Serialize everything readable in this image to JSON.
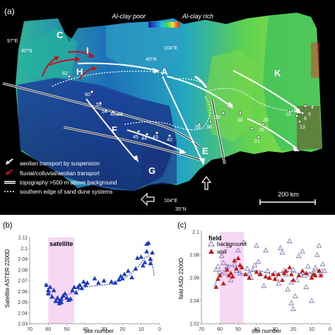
{
  "panel_a": {
    "letter": "(a)",
    "colorbar": {
      "left_label": "Al-clay poor",
      "right_label": "Al-clay rich"
    },
    "graticule": [
      "97°E",
      "40°N",
      "40°N",
      "104°E",
      "104°E",
      "35°N"
    ],
    "regions": [
      "A",
      "C",
      "E",
      "F",
      "G",
      "H",
      "I",
      "K"
    ],
    "sites": [
      "62",
      "60",
      "55",
      "54",
      "49",
      "48",
      "45",
      "44",
      "43",
      "40",
      "39",
      "38",
      "35",
      "33",
      "30",
      "26",
      "21",
      "20",
      "10",
      "8",
      "6",
      "4",
      "13",
      "5"
    ],
    "scale_bar": "200 km",
    "legend": [
      {
        "label": "aeolian transport by suspension",
        "icon": "white-arrow-icon"
      },
      {
        "label": "fluvial/colluvial/aeolian transport",
        "icon": "red-arrow-icon"
      },
      {
        "label": "topography >500 m above background",
        "icon": "white-outline-line-icon"
      },
      {
        "label": "southern edge of sand dune systems",
        "icon": "white-dotted-line-icon"
      }
    ]
  },
  "chart_data": [
    {
      "type": "scatter",
      "panel": "(b)",
      "title": "satellite",
      "xlabel": "site number",
      "ylabel": "Satellite ASTER 2200D",
      "xlim": [
        70,
        0
      ],
      "ylim": [
        2.03,
        2.11
      ],
      "xticks": [
        "70",
        "60",
        "50",
        "40",
        "30",
        "20",
        "10",
        "0"
      ],
      "yticks": [
        "2.03",
        "2.04",
        "2.05",
        "2.06",
        "2.07",
        "2.08",
        "2.09",
        "2.1",
        "2.11"
      ],
      "highlight_x": [
        60,
        46
      ],
      "marker_color": "#1a3bbf",
      "trend_color": "#1a3bbf",
      "series": [
        {
          "points": [
            [
              61,
              2.066
            ],
            [
              60,
              2.058
            ],
            [
              60,
              2.061
            ],
            [
              59,
              2.064
            ],
            [
              58,
              2.055
            ],
            [
              57,
              2.061
            ],
            [
              56,
              2.051
            ],
            [
              55,
              2.054
            ],
            [
              54,
              2.049
            ],
            [
              54,
              2.051
            ],
            [
              53,
              2.05
            ],
            [
              53,
              2.053
            ],
            [
              52,
              2.056
            ],
            [
              51,
              2.058
            ],
            [
              50,
              2.054
            ],
            [
              49,
              2.052
            ],
            [
              48,
              2.053
            ],
            [
              47,
              2.061
            ],
            [
              46,
              2.064
            ],
            [
              45,
              2.059
            ],
            [
              44,
              2.064
            ],
            [
              43,
              2.066
            ],
            [
              42,
              2.063
            ],
            [
              41,
              2.069
            ],
            [
              40,
              2.066
            ],
            [
              39,
              2.068
            ],
            [
              35,
              2.072
            ],
            [
              33,
              2.068
            ],
            [
              30,
              2.07
            ],
            [
              26,
              2.069
            ],
            [
              24,
              2.068
            ],
            [
              22,
              2.071
            ],
            [
              21,
              2.074
            ],
            [
              20,
              2.072
            ],
            [
              19,
              2.076
            ],
            [
              17,
              2.079
            ],
            [
              15,
              2.073
            ],
            [
              13,
              2.081
            ],
            [
              12,
              2.091
            ],
            [
              10,
              2.092
            ],
            [
              9,
              2.084
            ],
            [
              8,
              2.087
            ],
            [
              7,
              2.097
            ],
            [
              7,
              2.104
            ],
            [
              6,
              2.105
            ],
            [
              5,
              2.086
            ],
            [
              5,
              2.09
            ],
            [
              4,
              2.096
            ]
          ]
        }
      ],
      "trend": [
        [
          62,
          2.067
        ],
        [
          58,
          2.056
        ],
        [
          55,
          2.051
        ],
        [
          52,
          2.054
        ],
        [
          48,
          2.058
        ],
        [
          44,
          2.061
        ],
        [
          40,
          2.064
        ],
        [
          35,
          2.065
        ],
        [
          30,
          2.066
        ],
        [
          25,
          2.067
        ],
        [
          20,
          2.071
        ],
        [
          15,
          2.077
        ],
        [
          11,
          2.084
        ],
        [
          8,
          2.091
        ],
        [
          6,
          2.093
        ],
        [
          4,
          2.086
        ],
        [
          3,
          2.075
        ]
      ]
    },
    {
      "type": "scatter",
      "panel": "(c)",
      "title": "field",
      "xlabel": "site number",
      "ylabel": "field ASD 2200D",
      "xlim": [
        70,
        0
      ],
      "ylim": [
        2.02,
        2.1
      ],
      "xticks": [
        "70",
        "60",
        "50",
        "40",
        "30",
        "20",
        "10",
        "0"
      ],
      "yticks": [
        "2.02",
        "2.04",
        "2.06",
        "2.08",
        "2.1"
      ],
      "highlight_x": [
        60,
        47
      ],
      "trend_color": "#1a3bbf",
      "series": [
        {
          "name": "background",
          "marker": "open-triangle",
          "color": "#7a6fb8",
          "points": [
            [
              62,
              2.067
            ],
            [
              61,
              2.07
            ],
            [
              60,
              2.065
            ],
            [
              59,
              2.079
            ],
            [
              58,
              2.073
            ],
            [
              57,
              2.064
            ],
            [
              56,
              2.07
            ],
            [
              55,
              2.088
            ],
            [
              54,
              2.058
            ],
            [
              52,
              2.072
            ],
            [
              51,
              2.066
            ],
            [
              50,
              2.084
            ],
            [
              49,
              2.064
            ],
            [
              47,
              2.091
            ],
            [
              45,
              2.068
            ],
            [
              44,
              2.064
            ],
            [
              43,
              2.06
            ],
            [
              42,
              2.067
            ],
            [
              41,
              2.071
            ],
            [
              40,
              2.088
            ],
            [
              39,
              2.074
            ],
            [
              38,
              2.064
            ],
            [
              36,
              2.053
            ],
            [
              35,
              2.084
            ],
            [
              34,
              2.066
            ],
            [
              33,
              2.06
            ],
            [
              30,
              2.064
            ],
            [
              29,
              2.059
            ],
            [
              28,
              2.055
            ],
            [
              27,
              2.086
            ],
            [
              26,
              2.082
            ],
            [
              25,
              2.066
            ],
            [
              24,
              2.063
            ],
            [
              23,
              2.05
            ],
            [
              22,
              2.092
            ],
            [
              21,
              2.038
            ],
            [
              21,
              2.056
            ],
            [
              20,
              2.033
            ],
            [
              20,
              2.067
            ],
            [
              19,
              2.044
            ],
            [
              18,
              2.058
            ],
            [
              17,
              2.079
            ],
            [
              16,
              2.063
            ],
            [
              15,
              2.083
            ],
            [
              14,
              2.062
            ],
            [
              13,
              2.052
            ],
            [
              12,
              2.07
            ],
            [
              11,
              2.063
            ],
            [
              10,
              2.04
            ],
            [
              9,
              2.065
            ],
            [
              8,
              2.069
            ],
            [
              7,
              2.08
            ],
            [
              6,
              2.088
            ],
            [
              5,
              2.064
            ],
            [
              4,
              2.072
            ],
            [
              3,
              2.066
            ]
          ]
        },
        {
          "name": "wall",
          "marker": "filled-triangle",
          "color": "#c61a1a",
          "points": [
            [
              62,
              2.052
            ],
            [
              61,
              2.059
            ],
            [
              60,
              2.062
            ],
            [
              58,
              2.055
            ],
            [
              56,
              2.067
            ],
            [
              55,
              2.062
            ],
            [
              54,
              2.064
            ],
            [
              53,
              2.061
            ],
            [
              52,
              2.075
            ],
            [
              51,
              2.068
            ],
            [
              50,
              2.077
            ],
            [
              49,
              2.071
            ],
            [
              48,
              2.069
            ],
            [
              46,
              2.063
            ],
            [
              44,
              2.06
            ],
            [
              40,
              2.065
            ],
            [
              38,
              2.063
            ],
            [
              35,
              2.061
            ],
            [
              33,
              2.06
            ],
            [
              31,
              2.063
            ],
            [
              30,
              2.059
            ],
            [
              28,
              2.063
            ],
            [
              26,
              2.058
            ],
            [
              25,
              2.064
            ],
            [
              24,
              2.066
            ],
            [
              22,
              2.069
            ],
            [
              21,
              2.063
            ],
            [
              20,
              2.058
            ],
            [
              17,
              2.062
            ],
            [
              15,
              2.066
            ],
            [
              13,
              2.064
            ],
            [
              10,
              2.06
            ],
            [
              9,
              2.063
            ],
            [
              8,
              2.062
            ],
            [
              6,
              2.066
            ],
            [
              5,
              2.062
            ]
          ]
        }
      ],
      "trend": [
        [
          63,
          2.053
        ],
        [
          61,
          2.059
        ],
        [
          58,
          2.066
        ],
        [
          55,
          2.071
        ],
        [
          52,
          2.069
        ],
        [
          49,
          2.064
        ],
        [
          46,
          2.063
        ],
        [
          42,
          2.066
        ],
        [
          38,
          2.066
        ],
        [
          34,
          2.064
        ],
        [
          30,
          2.063
        ],
        [
          26,
          2.065
        ],
        [
          22,
          2.066
        ],
        [
          18,
          2.064
        ],
        [
          14,
          2.063
        ],
        [
          10,
          2.065
        ],
        [
          6,
          2.067
        ],
        [
          4,
          2.067
        ]
      ]
    }
  ]
}
